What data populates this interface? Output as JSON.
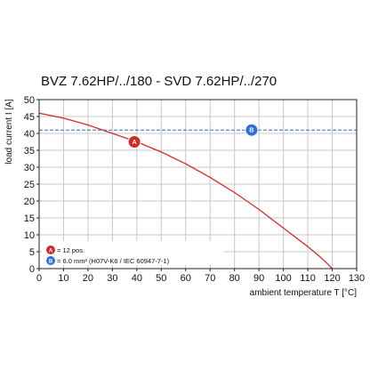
{
  "chart_data": {
    "type": "line",
    "title": "BVZ 7.62HP/../180 - SVD 7.62HP/../270",
    "xlabel": "ambient temperature T [°C]",
    "ylabel": "load current I [A]",
    "xlim": [
      0,
      130
    ],
    "ylim": [
      0,
      50
    ],
    "x_ticks": [
      "0",
      "10",
      "20",
      "30",
      "40",
      "50",
      "60",
      "70",
      "80",
      "90",
      "100",
      "110",
      "120",
      "130"
    ],
    "y_ticks": [
      "0",
      "5",
      "10",
      "15",
      "20",
      "25",
      "30",
      "35",
      "40",
      "45",
      "50"
    ],
    "grid": true,
    "legend_position": "bottom-left",
    "series": [
      {
        "name": "A",
        "style": "solid",
        "color": "#d42a2a",
        "x": [
          0,
          10,
          20,
          30,
          40,
          50,
          60,
          70,
          80,
          90,
          100,
          110,
          115,
          118,
          120
        ],
        "y": [
          46,
          44.5,
          42.5,
          40,
          37.5,
          34.5,
          31,
          27,
          22.5,
          17.5,
          12,
          6.5,
          3.5,
          1.5,
          0
        ]
      },
      {
        "name": "B",
        "style": "dashed",
        "color": "#3a6fb0",
        "x": [
          0,
          130
        ],
        "y": [
          41,
          41
        ]
      }
    ],
    "markers": [
      {
        "label": "A",
        "x": 39,
        "y": 37.5,
        "color": "#d42a2a"
      },
      {
        "label": "B",
        "x": 87,
        "y": 41,
        "color": "#2f6fd6"
      }
    ],
    "legend": [
      {
        "marker": "A",
        "color": "#d42a2a",
        "text": "= 12 pos."
      },
      {
        "marker": "B",
        "color": "#2f6fd6",
        "text": "= 6.0 mm² (H07V-K6 / IEC 60947-7-1)"
      }
    ]
  }
}
